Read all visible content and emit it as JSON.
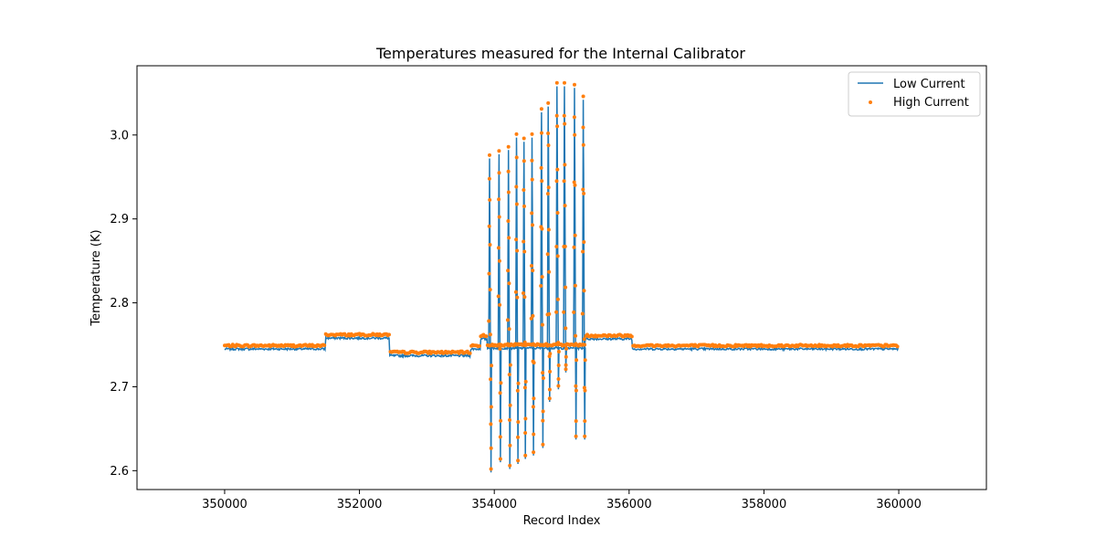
{
  "chart_data": {
    "type": "line",
    "title": "Temperatures measured for the Internal Calibrator",
    "xlabel": "Record Index",
    "ylabel": "Temperature (K)",
    "xlim": [
      348700,
      361300
    ],
    "ylim": [
      2.5775,
      3.0825
    ],
    "x_ticks": [
      350000,
      352000,
      354000,
      356000,
      358000,
      360000
    ],
    "x_tick_labels": [
      "350000",
      "352000",
      "354000",
      "356000",
      "358000",
      "360000"
    ],
    "y_ticks": [
      2.6,
      2.7,
      2.8,
      2.9,
      3.0
    ],
    "y_tick_labels": [
      "2.6",
      "2.7",
      "2.8",
      "2.9",
      "3.0"
    ],
    "grid": false,
    "legend_position": "top-right",
    "series": [
      {
        "name": "Low Current",
        "style": "line",
        "color": "#1f77b4",
        "segments": [
          {
            "x0": 350000,
            "x1": 351500,
            "y": 2.745
          },
          {
            "x0": 351500,
            "x1": 352450,
            "y": 2.758
          },
          {
            "x0": 352450,
            "x1": 353650,
            "y": 2.737
          },
          {
            "x0": 353650,
            "x1": 353800,
            "y": 2.745
          },
          {
            "x0": 353800,
            "x1": 353900,
            "y": 2.757
          },
          {
            "x0": 353900,
            "x1": 355350,
            "y": 2.746
          },
          {
            "x0": 355350,
            "x1": 356050,
            "y": 2.757
          },
          {
            "x0": 356050,
            "x1": 360000,
            "y": 2.745
          }
        ],
        "spikes": [
          {
            "x": 353930,
            "high": 2.972,
            "low": 2.598
          },
          {
            "x": 354070,
            "high": 2.977,
            "low": 2.61
          },
          {
            "x": 354210,
            "high": 2.982,
            "low": 2.602
          },
          {
            "x": 354330,
            "high": 2.997,
            "low": 2.608
          },
          {
            "x": 354440,
            "high": 2.992,
            "low": 2.614
          },
          {
            "x": 354560,
            "high": 2.997,
            "low": 2.618
          },
          {
            "x": 354700,
            "high": 3.027,
            "low": 2.627
          },
          {
            "x": 354800,
            "high": 3.034,
            "low": 2.682
          },
          {
            "x": 354930,
            "high": 3.058,
            "low": 2.697
          },
          {
            "x": 355040,
            "high": 3.058,
            "low": 2.717
          },
          {
            "x": 355190,
            "high": 3.056,
            "low": 2.637
          },
          {
            "x": 355320,
            "high": 3.042,
            "low": 2.637
          }
        ]
      },
      {
        "name": "High Current",
        "style": "scatter",
        "color": "#ff7f0e",
        "offset": 0.004
      }
    ]
  }
}
